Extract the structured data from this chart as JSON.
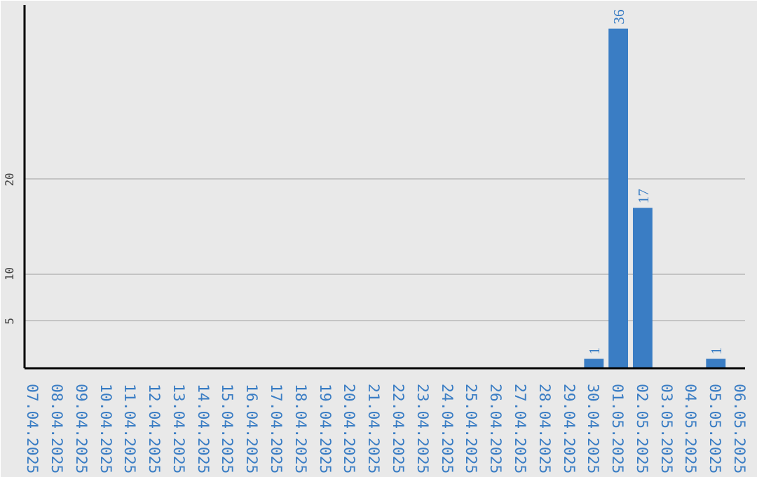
{
  "chart_data": {
    "type": "bar",
    "categories": [
      "07.04.2025",
      "08.04.2025",
      "09.04.2025",
      "10.04.2025",
      "11.04.2025",
      "12.04.2025",
      "13.04.2025",
      "14.04.2025",
      "15.04.2025",
      "16.04.2025",
      "17.04.2025",
      "18.04.2025",
      "19.04.2025",
      "20.04.2025",
      "21.04.2025",
      "22.04.2025",
      "23.04.2025",
      "24.04.2025",
      "25.04.2025",
      "26.04.2025",
      "27.04.2025",
      "28.04.2025",
      "29.04.2025",
      "30.04.2025",
      "01.05.2025",
      "02.05.2025",
      "03.05.2025",
      "04.05.2025",
      "05.05.2025",
      "06.05.2025"
    ],
    "values": [
      0,
      0,
      0,
      0,
      0,
      0,
      0,
      0,
      0,
      0,
      0,
      0,
      0,
      0,
      0,
      0,
      0,
      0,
      0,
      0,
      0,
      0,
      0,
      1,
      36,
      17,
      0,
      0,
      1,
      0
    ],
    "value_labels": [
      null,
      null,
      null,
      null,
      null,
      null,
      null,
      null,
      null,
      null,
      null,
      null,
      null,
      null,
      null,
      null,
      null,
      null,
      null,
      null,
      null,
      null,
      null,
      "1",
      "36",
      "17",
      null,
      null,
      "1",
      null
    ],
    "color": "#3a7dc4",
    "ylim": [
      0,
      38.5
    ],
    "yticks": [
      5,
      10,
      20
    ],
    "grid": "y"
  }
}
